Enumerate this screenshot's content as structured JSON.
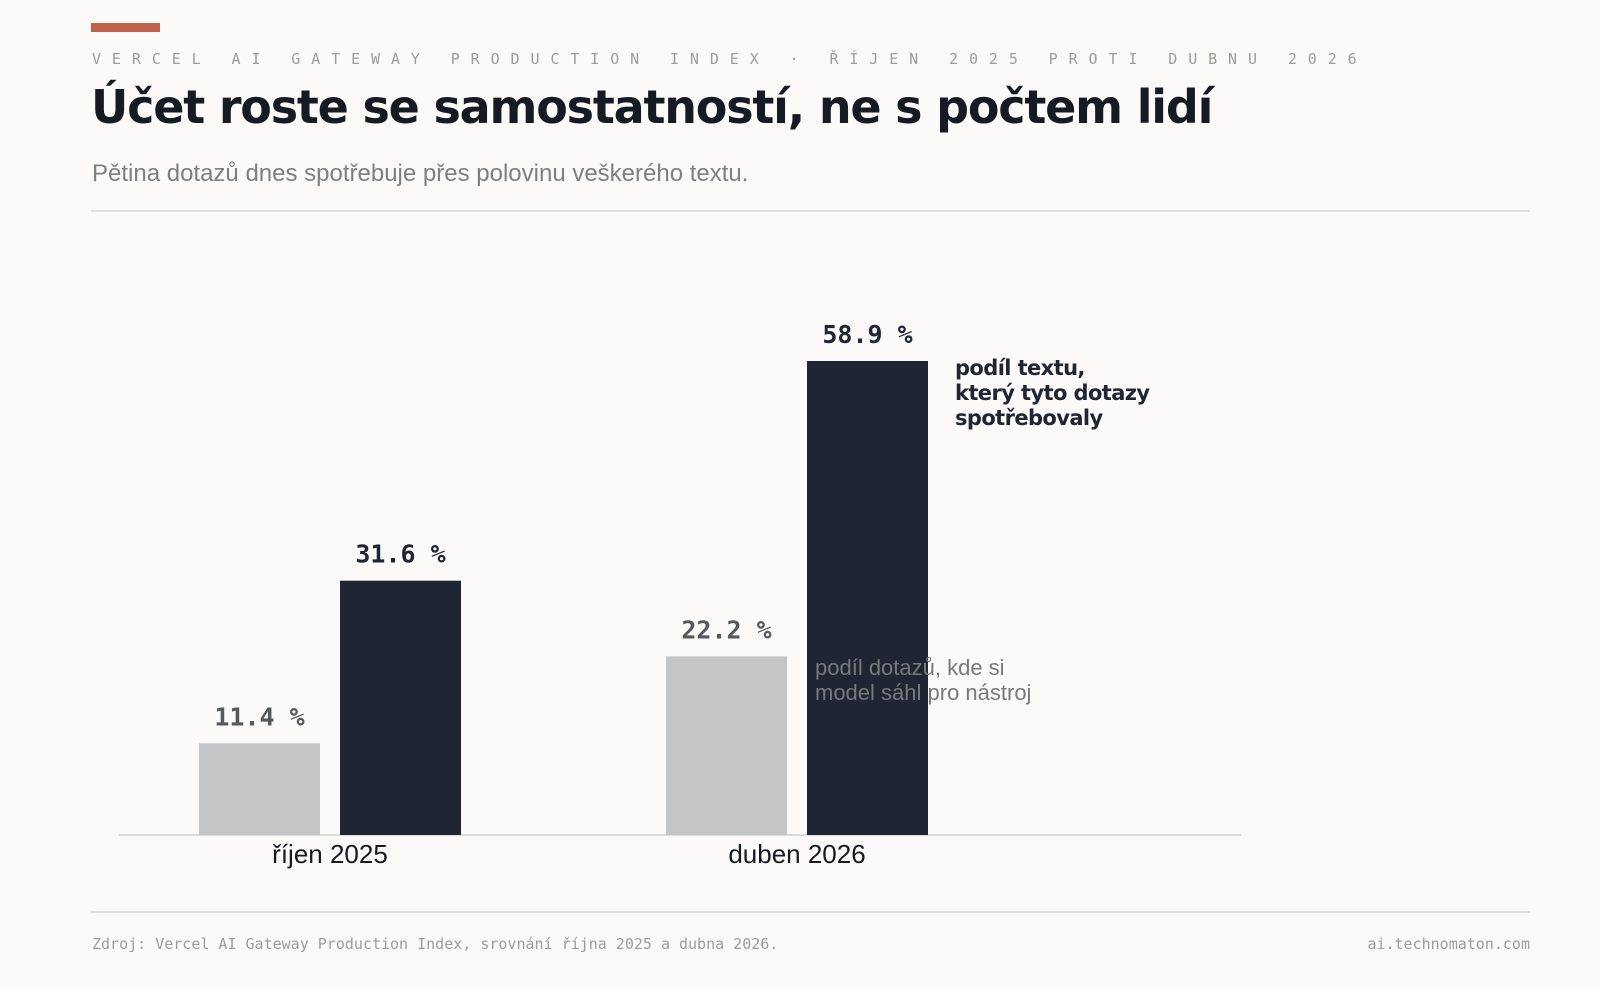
{
  "header": {
    "kicker": "VERCEL AI GATEWAY PRODUCTION INDEX · ŘÍJEN 2025 PROTI DUBNU 2026",
    "title": "Účet roste se samostatností, ne s počtem lidí",
    "subtitle": "Pětina dotazů dnes spotřebuje přes polovinu veškerého textu."
  },
  "colors": {
    "accent": "#c0614a",
    "dark_bar": "#1f2532",
    "light_bar": "#c4c5c7",
    "dark_text": "#1f2532",
    "light_text": "#55585d",
    "background": "#fbfaf8"
  },
  "chart_data": {
    "type": "bar",
    "categories": [
      "říjen 2025",
      "duben 2026"
    ],
    "series": [
      {
        "name": "podíl dotazů, kde si model sáhl pro nástroj",
        "values": [
          11.4,
          22.2
        ]
      },
      {
        "name": "podíl textu, který tyto dotazy spotřebovaly",
        "values": [
          31.6,
          58.9
        ]
      }
    ],
    "value_labels": [
      [
        "11.4 %",
        "22.2 %"
      ],
      [
        "31.6 %",
        "58.9 %"
      ]
    ],
    "annotations": [
      {
        "series": 0,
        "lines": [
          "podíl dotazů, kde si",
          "model sáhl pro nástroj"
        ]
      },
      {
        "series": 1,
        "lines": [
          "podíl textu,",
          "který tyto dotazy",
          "spotřebovaly"
        ]
      }
    ],
    "ylim": [
      0,
      60
    ],
    "grid": false,
    "legend": "direct labels"
  },
  "footer": {
    "source": "Zdroj: Vercel AI Gateway Production Index, srovnání října 2025 a dubna 2026.",
    "site": "ai.technomaton.com"
  }
}
